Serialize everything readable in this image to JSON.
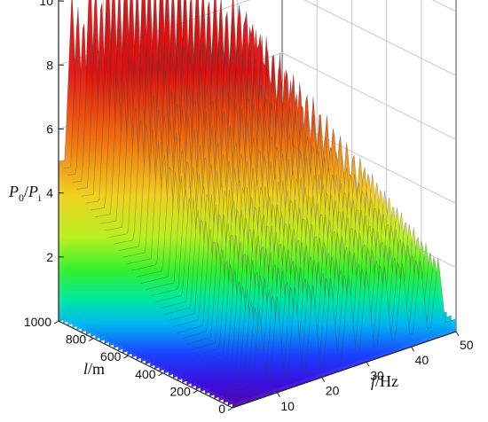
{
  "chart_data": {
    "type": "surface-3d",
    "z_axis": {
      "label_main": "P",
      "sub_num": "0",
      "slash": "/",
      "label_den": "P",
      "sub_den": "i",
      "ticks": [
        "2",
        "4",
        "6",
        "8",
        "10"
      ],
      "range": [
        0,
        11.5
      ]
    },
    "y_axis": {
      "label_var": "l",
      "label_unit": "/m",
      "ticks": [
        "0",
        "200",
        "400",
        "600",
        "800",
        "1000"
      ],
      "range": [
        0,
        1000
      ]
    },
    "x_axis": {
      "label_var": "f",
      "label_unit": "/Hz",
      "ticks": [
        "10",
        "20",
        "30",
        "40",
        "50"
      ],
      "range": [
        0,
        50
      ]
    },
    "colormap": [
      "#5a0096",
      "#3a10e0",
      "#1a40ff",
      "#00b8f0",
      "#00e8a0",
      "#30f030",
      "#b8f020",
      "#f0d020",
      "#f07010",
      "#e01010"
    ],
    "peak_frequency_rows": [
      {
        "l": 1000,
        "peak_f": [
          3,
          7,
          11,
          15,
          19,
          23,
          27,
          31,
          35,
          39
        ],
        "peak_z": [
          10.2,
          10.8,
          11.0,
          10.9,
          10.7,
          10.5,
          10.0,
          9.6,
          9.0,
          8.5
        ]
      },
      {
        "l": 500,
        "peak_f": [
          8,
          12,
          16,
          20,
          24,
          28,
          32,
          36,
          40,
          44,
          48
        ],
        "peak_z": [
          5.5,
          5.4,
          5.3,
          5.2,
          5.0,
          5.0,
          4.9,
          4.8,
          4.6,
          4.4,
          4.2
        ]
      },
      {
        "l": 0,
        "peak_f": [
          6,
          10,
          14,
          18,
          22,
          26,
          30,
          34,
          38,
          42,
          46
        ],
        "peak_z": [
          2.8,
          3.0,
          3.1,
          3.0,
          3.0,
          2.9,
          2.9,
          2.8,
          2.7,
          2.6,
          2.5
        ]
      }
    ]
  }
}
